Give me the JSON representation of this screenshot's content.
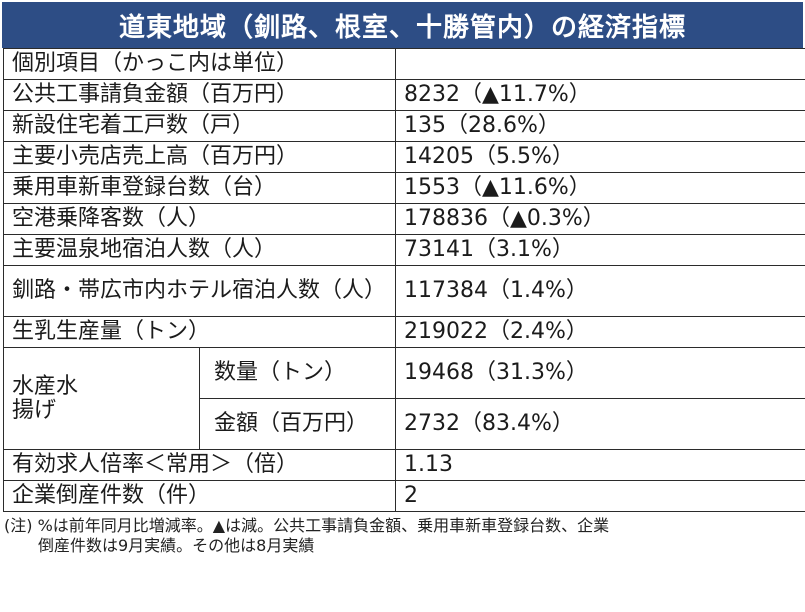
{
  "title": "道東地域（釧路、根室、十勝管内）の経済指標",
  "header_row": {
    "label": "個別項目（かっこ内は単位）",
    "value": ""
  },
  "rows": [
    {
      "label": "公共工事請負金額（百万円）",
      "value": "8232（▲11.7%）"
    },
    {
      "label": "新設住宅着工戸数（戸）",
      "value": "135（28.6%）"
    },
    {
      "label": "主要小売店売上高（百万円）",
      "value": "14205（5.5%）"
    },
    {
      "label": "乗用車新車登録台数（台）",
      "value": "1553（▲11.6%）"
    },
    {
      "label": "空港乗降客数（人）",
      "value": "178836（▲0.3%）"
    },
    {
      "label": "主要温泉地宿泊人数（人）",
      "value": "73141（3.1%）"
    },
    {
      "label": "釧路・帯広市内ホテル宿泊人数（人）",
      "value": "117384（1.4%）"
    },
    {
      "label": "生乳生産量（トン）",
      "value": "219022（2.4%）"
    }
  ],
  "fishery": {
    "label": "水産水揚げ",
    "items": [
      {
        "label": "数量（トン）",
        "value": "19468（31.3%）"
      },
      {
        "label": "金額（百万円）",
        "value": "2732（83.4%）"
      }
    ]
  },
  "tail_rows": [
    {
      "label": "有効求人倍率＜常用＞（倍）",
      "value": "1.13"
    },
    {
      "label": "企業倒産件数（件）",
      "value": "2"
    }
  ],
  "note": {
    "line1": "(注) %は前年同月比増減率。▲は減。公共工事請負金額、乗用車新車登録台数、企業",
    "line2": "倒産件数は9月実績。その他は8月実績"
  }
}
